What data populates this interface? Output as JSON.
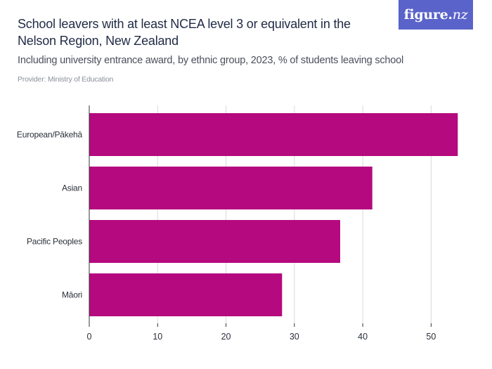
{
  "header": {
    "title": "School leavers with at least NCEA level 3 or equivalent in the Nelson Region, New Zealand",
    "subtitle": "Including university entrance award, by ethnic group, 2023, % of students leaving school",
    "provider": "Provider: Ministry of Education",
    "logo_text": "figure.",
    "logo_suffix": "nz"
  },
  "colors": {
    "bar": "#b5097f",
    "grid": "#d9d9d9",
    "axis": "#333333",
    "logo_bg": "#5a63c9"
  },
  "chart_data": {
    "type": "bar",
    "orientation": "horizontal",
    "title": "School leavers with at least NCEA level 3 or equivalent in the Nelson Region, New Zealand",
    "xlabel": "",
    "ylabel": "",
    "categories": [
      "European/Pākehā",
      "Asian",
      "Pacific Peoples",
      "Māori"
    ],
    "values": [
      53.9,
      41.4,
      36.7,
      28.2
    ],
    "xlim": [
      0,
      55
    ],
    "xticks": [
      0,
      10,
      20,
      30,
      40,
      50
    ],
    "grid": true
  }
}
